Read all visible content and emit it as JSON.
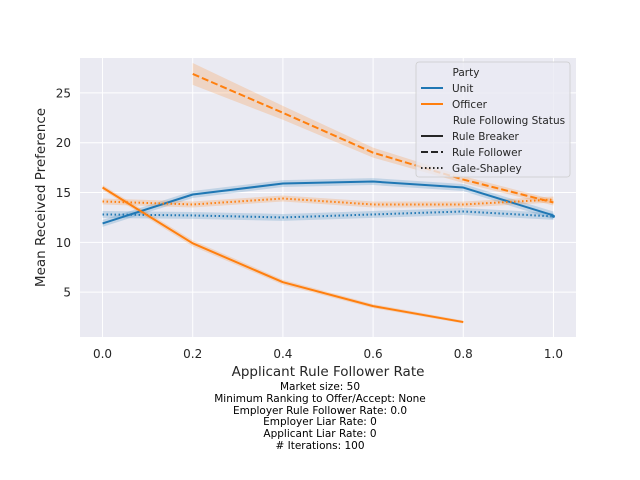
{
  "chart_data": {
    "type": "line",
    "xlabel": "Applicant Rule Follower Rate",
    "ylabel": "Mean Received Preference",
    "xlim": [
      -0.05,
      1.05
    ],
    "ylim": [
      0.5,
      28.5
    ],
    "xticks": [
      0.0,
      0.2,
      0.4,
      0.6,
      0.8,
      1.0
    ],
    "xtick_labels": [
      "0.0",
      "0.2",
      "0.4",
      "0.6",
      "0.8",
      "1.0"
    ],
    "yticks": [
      5,
      10,
      15,
      20,
      25
    ],
    "ytick_labels": [
      "5",
      "10",
      "15",
      "20",
      "25"
    ],
    "grid": true,
    "legend_position": "top-right",
    "legend": {
      "hue_title": "Party",
      "hue_entries": [
        {
          "label": "Unit",
          "color": "#1f77b4"
        },
        {
          "label": "Officer",
          "color": "#ff7f0e"
        }
      ],
      "style_title": "Rule Following Status",
      "style_entries": [
        {
          "label": "Rule Breaker",
          "dash": "solid"
        },
        {
          "label": "Rule Follower",
          "dash": "dashed"
        },
        {
          "label": "Gale-Shapley",
          "dash": "dotted"
        }
      ]
    },
    "series": [
      {
        "party": "Unit",
        "status": "Rule Breaker",
        "color": "#1f77b4",
        "dash": "solid",
        "x": [
          0.0,
          0.2,
          0.4,
          0.6,
          0.8,
          1.0
        ],
        "y": [
          11.9,
          14.8,
          15.9,
          16.1,
          15.5,
          12.7
        ],
        "ci": [
          0.35,
          0.35,
          0.35,
          0.35,
          0.35,
          0.4
        ]
      },
      {
        "party": "Unit",
        "status": "Rule Follower",
        "color": "#1f77b4",
        "dash": "dashed",
        "x": [
          1.0
        ],
        "y": [
          12.6
        ],
        "ci": [
          0.3
        ]
      },
      {
        "party": "Unit",
        "status": "Gale-Shapley",
        "color": "#1f77b4",
        "dash": "dotted",
        "x": [
          0.0,
          0.2,
          0.4,
          0.6,
          0.8,
          1.0
        ],
        "y": [
          12.8,
          12.7,
          12.5,
          12.8,
          13.1,
          12.6
        ],
        "ci": [
          0.35,
          0.35,
          0.35,
          0.35,
          0.35,
          0.35
        ]
      },
      {
        "party": "Officer",
        "status": "Rule Breaker",
        "color": "#ff7f0e",
        "dash": "solid",
        "x": [
          0.0,
          0.2,
          0.4,
          0.6,
          0.8
        ],
        "y": [
          15.5,
          9.9,
          6.0,
          3.6,
          2.0
        ],
        "ci": [
          0.25,
          0.3,
          0.25,
          0.2,
          0.15
        ]
      },
      {
        "party": "Officer",
        "status": "Rule Follower",
        "color": "#ff7f0e",
        "dash": "dashed",
        "x": [
          0.2,
          0.4,
          0.6,
          0.8,
          1.0
        ],
        "y": [
          26.9,
          23.0,
          19.0,
          16.3,
          14.0
        ],
        "ci": [
          1.1,
          0.7,
          0.5,
          0.35,
          0.3
        ]
      },
      {
        "party": "Officer",
        "status": "Gale-Shapley",
        "color": "#ff7f0e",
        "dash": "dotted",
        "x": [
          0.0,
          0.2,
          0.4,
          0.6,
          0.8,
          1.0
        ],
        "y": [
          14.1,
          13.8,
          14.4,
          13.8,
          13.8,
          14.3
        ],
        "ci": [
          0.3,
          0.3,
          0.3,
          0.3,
          0.3,
          0.3
        ]
      }
    ]
  },
  "caption": {
    "lines": [
      "Market size: 50",
      "Minimum Ranking to Offer/Accept: None",
      "Employer Rule Follower Rate: 0.0",
      "Employer Liar Rate: 0",
      "Applicant Liar Rate: 0",
      "# Iterations: 100"
    ]
  }
}
